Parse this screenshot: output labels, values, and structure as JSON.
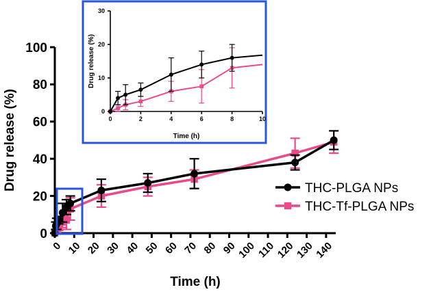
{
  "colors": {
    "plga": "#000000",
    "tf_plga": "#ea4a8a",
    "inset_frame": "#2b55e0"
  },
  "chart_data": [
    {
      "type": "line",
      "id": "main",
      "xlabel": "Time (h)",
      "ylabel": "Drug release (%)",
      "xlim": [
        0,
        145
      ],
      "ylim": [
        0,
        100
      ],
      "xticks": [
        0,
        10,
        20,
        30,
        40,
        50,
        60,
        70,
        80,
        90,
        100,
        110,
        120,
        130,
        140
      ],
      "yticks": [
        0,
        20,
        40,
        60,
        80,
        100
      ],
      "legend": "right",
      "series": [
        {
          "name": "THC-PLGA NPs",
          "marker": "circle",
          "x": [
            0,
            0.5,
            1,
            2,
            4,
            6,
            8,
            24,
            48,
            72,
            124,
            144
          ],
          "y": [
            0,
            4,
            5,
            7,
            11,
            14,
            16,
            23,
            27,
            32,
            38,
            50
          ],
          "err": [
            0,
            2,
            3,
            2,
            5,
            4,
            4,
            6,
            5,
            8,
            4,
            5
          ]
        },
        {
          "name": "THC-Tf-PLGA NPs",
          "marker": "square",
          "x": [
            0,
            0.5,
            1,
            2,
            4,
            6,
            8,
            24,
            48,
            72,
            124,
            144
          ],
          "y": [
            0,
            1,
            2,
            3,
            6,
            7,
            13,
            20,
            25,
            29,
            43,
            49
          ],
          "err": [
            0,
            1,
            1.5,
            1.5,
            3,
            5,
            6,
            6,
            5,
            5,
            8,
            6
          ]
        }
      ]
    },
    {
      "type": "line",
      "id": "inset",
      "xlabel": "Time (h)",
      "ylabel": "Drug release (%)",
      "xlim": [
        0,
        10
      ],
      "ylim": [
        0,
        30
      ],
      "xticks": [
        0,
        2,
        4,
        6,
        8,
        10
      ],
      "yticks": [
        0,
        10,
        20,
        30
      ],
      "series": [
        {
          "name": "THC-PLGA NPs",
          "marker": "circle",
          "x": [
            0,
            0.5,
            1,
            2,
            4,
            6,
            8,
            10
          ],
          "y": [
            0,
            4,
            5,
            6.5,
            11,
            14,
            16,
            16.8
          ],
          "err": [
            0,
            2,
            3,
            2,
            5,
            4,
            4,
            0
          ]
        },
        {
          "name": "THC-Tf-PLGA NPs",
          "marker": "square",
          "x": [
            0,
            0.5,
            1,
            2,
            4,
            6,
            8,
            10
          ],
          "y": [
            0,
            1,
            2,
            3,
            6,
            7.5,
            13,
            14
          ],
          "err": [
            0,
            1,
            1.5,
            1.5,
            3,
            5,
            6,
            0
          ]
        }
      ]
    }
  ]
}
